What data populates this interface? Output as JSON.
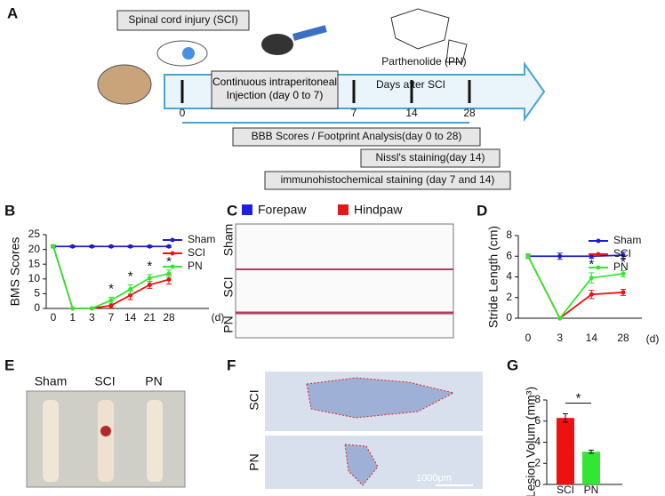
{
  "figure": {
    "panel_letters": [
      "A",
      "B",
      "C",
      "D",
      "E",
      "F",
      "G"
    ],
    "a": {
      "sci_box": "Spinal cord  injury (SCI)",
      "injection_box": "Continuous intraperitoneal Injection (day 0 to 7)",
      "drug": "Parthenolide (PN)",
      "timeline_label": "Days after SCI",
      "timeline_ticks": [
        "0",
        "7",
        "14",
        "28"
      ],
      "assays": [
        "BBB Scores / Footprint Analysis(day 0 to 28)",
        "Nissl's staining(day 14)",
        "immunohistochemical staining (day 7 and 14)"
      ]
    },
    "c": {
      "legend": [
        "Forepaw",
        "Hindpaw"
      ],
      "rows": [
        "Sham",
        "SCI",
        "PN"
      ]
    },
    "e": {
      "columns": [
        "Sham",
        "SCI",
        "PN"
      ]
    },
    "f": {
      "rows": [
        "SCI",
        "PN"
      ],
      "scale_bar": "1000μm"
    }
  },
  "chart_data": [
    {
      "type": "line",
      "y_label": "BMS Scores",
      "x_unit": "(d)",
      "categories": [
        "0",
        "1",
        "3",
        "7",
        "14",
        "21",
        "28"
      ],
      "ylim": [
        0,
        25
      ],
      "yticks": [
        0,
        5,
        10,
        15,
        20,
        25
      ],
      "series": [
        {
          "name": "Sham",
          "color": "#1c1ccf",
          "values": [
            21,
            21,
            21,
            21,
            21,
            21,
            21
          ],
          "errors": [
            0.3,
            0.3,
            0.3,
            0.3,
            0.3,
            0.3,
            0.3
          ]
        },
        {
          "name": "SCI",
          "color": "#ee1111",
          "values": [
            21,
            0,
            0,
            1,
            4.5,
            8,
            9.8
          ],
          "errors": [
            0.5,
            0,
            0,
            0.8,
            1.5,
            1.2,
            1.5
          ]
        },
        {
          "name": "PN",
          "color": "#33e633",
          "values": [
            21,
            0,
            0,
            2.8,
            6.5,
            10.3,
            11.8
          ],
          "errors": [
            0.5,
            0,
            0,
            1,
            1.5,
            1.2,
            1.2
          ]
        }
      ],
      "annotations": [
        {
          "text": "*",
          "x": "7"
        },
        {
          "text": "*",
          "x": "14"
        },
        {
          "text": "*",
          "x": "21"
        },
        {
          "text": "*",
          "x": "28"
        }
      ]
    },
    {
      "type": "line",
      "y_label": "Stride Length (cm)",
      "x_unit": "(d)",
      "categories": [
        "0",
        "3",
        "14",
        "28"
      ],
      "ylim": [
        0,
        8
      ],
      "yticks": [
        0,
        2,
        4,
        6,
        8
      ],
      "series": [
        {
          "name": "Sham",
          "color": "#1c1ccf",
          "values": [
            6,
            6,
            6,
            6.1
          ],
          "errors": [
            0.2,
            0.3,
            0.2,
            0.3
          ]
        },
        {
          "name": "SCI",
          "color": "#ee1111",
          "values": [
            6,
            0,
            2.3,
            2.5
          ],
          "errors": [
            0.2,
            0,
            0.4,
            0.3
          ]
        },
        {
          "name": "PN",
          "color": "#33e633",
          "values": [
            6,
            0,
            3.9,
            4.3
          ],
          "errors": [
            0.2,
            0,
            0.5,
            0.3
          ]
        }
      ],
      "annotations": [
        {
          "text": "*",
          "x": "14"
        },
        {
          "text": "*",
          "x": "28"
        }
      ]
    },
    {
      "type": "bar",
      "y_label": "Lesion Volum (mm³)",
      "categories": [
        "SCI",
        "PN"
      ],
      "values": [
        6.3,
        3.1
      ],
      "errors": [
        0.4,
        0.15
      ],
      "colors": [
        "#ee1111",
        "#33e633"
      ],
      "ylim": [
        0,
        8
      ],
      "yticks": [
        0,
        2,
        4,
        6,
        8
      ],
      "annotations": [
        {
          "text": "*"
        }
      ]
    }
  ]
}
